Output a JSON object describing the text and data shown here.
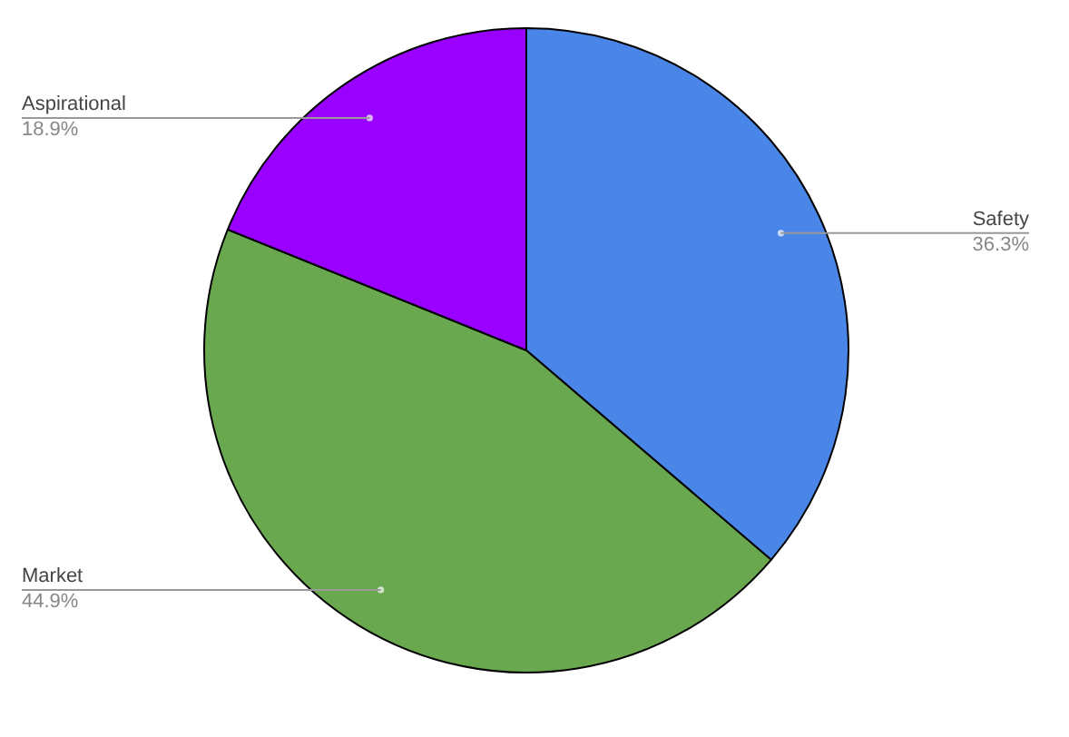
{
  "chart_data": {
    "type": "pie",
    "categories": [
      "Safety",
      "Market",
      "Aspirational"
    ],
    "values": [
      36.3,
      44.9,
      18.9
    ],
    "colors": [
      "#4a86e8",
      "#6aa84f",
      "#9900ff"
    ],
    "value_labels": [
      "36.3%",
      "44.9%",
      "18.9%"
    ],
    "legend": false
  }
}
